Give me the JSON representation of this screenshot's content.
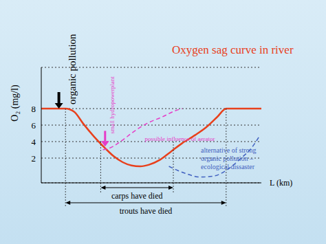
{
  "chart_data": {
    "type": "line",
    "title": "Oxygen sag curve in river",
    "x_label": "L (km)",
    "y_label": "O₂ (mg/l)",
    "xlim": [
      0,
      100
    ],
    "ylim": [
      -1,
      13
    ],
    "yticks": [
      2,
      4,
      6,
      8
    ],
    "grid": true,
    "tick_labels": "y",
    "title_color": "#e8401c",
    "series": [
      {
        "color": "#e8401c",
        "line_style": "solid",
        "x": [
          0,
          11,
          15,
          19,
          24,
          29,
          33,
          37,
          41,
          45,
          49,
          54,
          59,
          64,
          70,
          75,
          80,
          84,
          100
        ],
        "values": [
          8,
          8,
          7.6,
          6.2,
          4.6,
          3.2,
          2.2,
          1.5,
          1.1,
          1,
          1.2,
          1.8,
          2.8,
          3.8,
          4.8,
          5.75,
          7,
          8,
          8
        ]
      },
      {
        "color": "#e63cc8",
        "line_style": "dashed",
        "x": [
          28,
          31,
          36,
          42,
          48,
          55,
          61,
          64
        ],
        "values": [
          3,
          3.2,
          4,
          5.2,
          6.2,
          7,
          7.75,
          8
        ]
      },
      {
        "color": "#4060c0",
        "line_style": "dashed",
        "x": [
          58,
          62,
          66,
          72,
          78,
          84,
          90,
          96,
          99
        ],
        "values": [
          1,
          0.5,
          0.1,
          -0.3,
          -0.2,
          0.5,
          1.8,
          3.4,
          4.6
        ]
      }
    ],
    "arrows": [
      {
        "text": "organic pollution",
        "x": 8,
        "y_from": 10,
        "y_to": 8,
        "color": "#000000"
      },
      {
        "text": "small hydropowerplant",
        "x": 29,
        "y_from": 5.3,
        "y_to": 3.4,
        "color": "#e63cc8"
      }
    ],
    "notes": [
      {
        "lines": [
          "possible influence of aerator"
        ],
        "x": 47,
        "y": 4.1,
        "color": "#e63cc8"
      },
      {
        "lines": [
          "alternative of strong",
          "organic pollution –",
          "ecological dissaster"
        ],
        "x": 72.5,
        "y": 2.67,
        "color": "#4060c0"
      }
    ],
    "ranges": [
      {
        "text": "carps have died",
        "from": 27,
        "to": 60
      },
      {
        "text": "trouts have died",
        "from": 11,
        "to": 84
      }
    ]
  }
}
